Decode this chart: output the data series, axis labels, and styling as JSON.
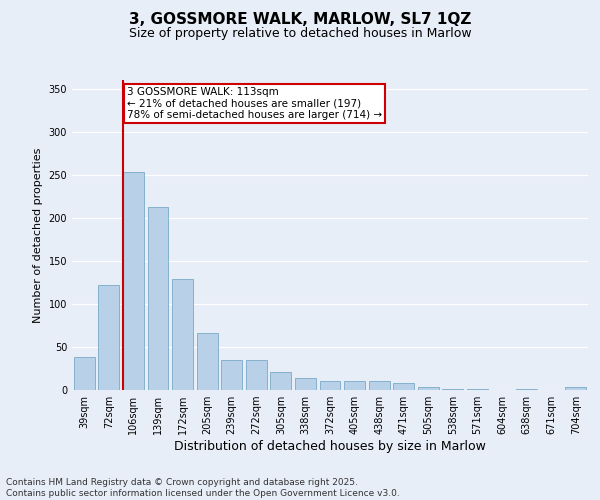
{
  "title": "3, GOSSMORE WALK, MARLOW, SL7 1QZ",
  "subtitle": "Size of property relative to detached houses in Marlow",
  "xlabel": "Distribution of detached houses by size in Marlow",
  "ylabel": "Number of detached properties",
  "categories": [
    "39sqm",
    "72sqm",
    "106sqm",
    "139sqm",
    "172sqm",
    "205sqm",
    "239sqm",
    "272sqm",
    "305sqm",
    "338sqm",
    "372sqm",
    "405sqm",
    "438sqm",
    "471sqm",
    "505sqm",
    "538sqm",
    "571sqm",
    "604sqm",
    "638sqm",
    "671sqm",
    "704sqm"
  ],
  "values": [
    38,
    122,
    253,
    213,
    129,
    66,
    35,
    35,
    21,
    14,
    10,
    10,
    10,
    8,
    4,
    1,
    1,
    0,
    1,
    0,
    4
  ],
  "bar_color": "#b8d0e8",
  "bar_edge_color": "#7aaac8",
  "red_line_index": 2,
  "annotation_text": "3 GOSSMORE WALK: 113sqm\n← 21% of detached houses are smaller (197)\n78% of semi-detached houses are larger (714) →",
  "annotation_box_color": "#ffffff",
  "annotation_box_edge": "#cc0000",
  "red_line_color": "#cc0000",
  "background_color": "#e8eef8",
  "grid_color": "#ffffff",
  "ylim": [
    0,
    360
  ],
  "yticks": [
    0,
    50,
    100,
    150,
    200,
    250,
    300,
    350
  ],
  "footer": "Contains HM Land Registry data © Crown copyright and database right 2025.\nContains public sector information licensed under the Open Government Licence v3.0.",
  "title_fontsize": 11,
  "subtitle_fontsize": 9,
  "xlabel_fontsize": 9,
  "ylabel_fontsize": 8,
  "tick_fontsize": 7,
  "footer_fontsize": 6.5,
  "annot_fontsize": 7.5
}
